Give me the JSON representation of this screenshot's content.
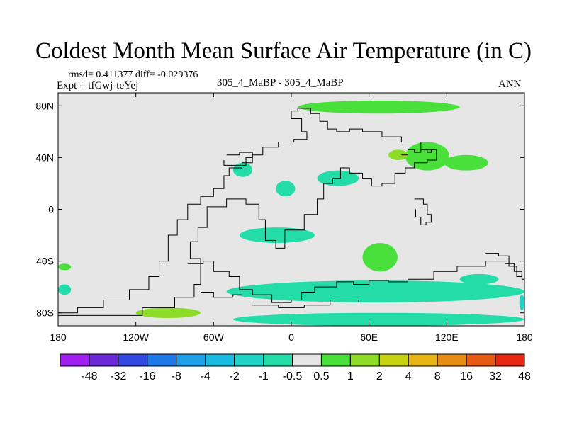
{
  "chart_data": {
    "type": "heatmap",
    "title": "Coldest Month Mean Surface Air Temperature (in C)",
    "stats_label": "rmsd= 0.411377  diff= -0.029376",
    "expt_label": "Expt = tfGwj-teYej",
    "center_label": "305_4_MaBP - 305_4_MaBP",
    "season_label": "ANN",
    "xlim": [
      -180,
      180
    ],
    "ylim": [
      -90,
      90
    ],
    "x_ticks": [
      {
        "value": -180,
        "label": "180"
      },
      {
        "value": -120,
        "label": "120W"
      },
      {
        "value": -60,
        "label": "60W"
      },
      {
        "value": 0,
        "label": "0"
      },
      {
        "value": 60,
        "label": "60E"
      },
      {
        "value": 120,
        "label": "120E"
      },
      {
        "value": 180,
        "label": "180"
      }
    ],
    "y_ticks": [
      {
        "value": 80,
        "label": "80N"
      },
      {
        "value": 40,
        "label": "40N"
      },
      {
        "value": 0,
        "label": "0"
      },
      {
        "value": -40,
        "label": "40S"
      },
      {
        "value": -80,
        "label": "80S"
      }
    ],
    "colorbar": {
      "levels": [
        "-48",
        "-32",
        "-16",
        "-8",
        "-4",
        "-2",
        "-1",
        "-0.5",
        "0.5",
        "1",
        "2",
        "4",
        "8",
        "16",
        "32",
        "48"
      ],
      "colors": [
        "#a020f0",
        "#6a28d8",
        "#3248e0",
        "#1e78e8",
        "#1ea0e8",
        "#19bce0",
        "#1ed2c8",
        "#24dca8",
        "#e6e6e6",
        "#4ae03c",
        "#8cdc28",
        "#c8d214",
        "#e6b414",
        "#e68c14",
        "#e65a14",
        "#e62814"
      ]
    },
    "background_color": "#e6e6e6",
    "anomaly_regions": [
      {
        "lon_range": [
          5,
          130
        ],
        "lat_range": [
          74,
          84
        ],
        "value": 0.7
      },
      {
        "lon_range": [
          88,
          122
        ],
        "lat_range": [
          30,
          52
        ],
        "value": 0.8
      },
      {
        "lon_range": [
          75,
          90
        ],
        "lat_range": [
          38,
          46
        ],
        "value": 1.3
      },
      {
        "lon_range": [
          118,
          152
        ],
        "lat_range": [
          30,
          42
        ],
        "value": 0.6
      },
      {
        "lon_range": [
          -45,
          -30
        ],
        "lat_range": [
          25,
          36
        ],
        "value": -0.7
      },
      {
        "lon_range": [
          -12,
          3
        ],
        "lat_range": [
          10,
          22
        ],
        "value": -0.7
      },
      {
        "lon_range": [
          20,
          52
        ],
        "lat_range": [
          18,
          30
        ],
        "value": -0.7
      },
      {
        "lon_range": [
          -40,
          18
        ],
        "lat_range": [
          -26,
          -14
        ],
        "value": -0.7
      },
      {
        "lon_range": [
          55,
          82
        ],
        "lat_range": [
          -48,
          -26
        ],
        "value": 0.7
      },
      {
        "lon_range": [
          -50,
          180
        ],
        "lat_range": [
          -72,
          -55
        ],
        "value": -0.7
      },
      {
        "lon_range": [
          -45,
          180
        ],
        "lat_range": [
          -90,
          -80
        ],
        "value": -0.8
      },
      {
        "lon_range": [
          -120,
          -70
        ],
        "lat_range": [
          -84,
          -76
        ],
        "value": 1.3
      },
      {
        "lon_range": [
          -180,
          -170
        ],
        "lat_range": [
          -47,
          -42
        ],
        "value": 0.7
      },
      {
        "lon_range": [
          -180,
          -170
        ],
        "lat_range": [
          -66,
          -58
        ],
        "value": -0.7
      },
      {
        "lon_range": [
          176,
          180
        ],
        "lat_range": [
          -78,
          -66
        ],
        "value": -2.0
      },
      {
        "lon_range": [
          130,
          160
        ],
        "lat_range": [
          -58,
          -50
        ],
        "value": -0.7
      }
    ],
    "coastlines": [
      [
        [
          -180,
          -82
        ],
        [
          -130,
          -82
        ],
        [
          -115,
          -76
        ],
        [
          -90,
          -68
        ],
        [
          -75,
          -58
        ],
        [
          -70,
          -38
        ],
        [
          -78,
          -25
        ],
        [
          -72,
          -14
        ],
        [
          -65,
          2
        ],
        [
          -50,
          8
        ],
        [
          -35,
          4
        ],
        [
          -25,
          -8
        ],
        [
          -20,
          -24
        ],
        [
          -12,
          -30
        ],
        [
          -5,
          -16
        ],
        [
          10,
          -4
        ],
        [
          20,
          8
        ],
        [
          25,
          20
        ],
        [
          32,
          24
        ],
        [
          38,
          32
        ],
        [
          45,
          28
        ],
        [
          55,
          24
        ],
        [
          62,
          18
        ],
        [
          70,
          20
        ],
        [
          80,
          28
        ],
        [
          88,
          32
        ],
        [
          95,
          36
        ],
        [
          105,
          38
        ],
        [
          112,
          46
        ],
        [
          100,
          52
        ],
        [
          85,
          56
        ],
        [
          70,
          60
        ],
        [
          55,
          62
        ],
        [
          45,
          60
        ],
        [
          35,
          62
        ],
        [
          28,
          68
        ],
        [
          22,
          74
        ],
        [
          15,
          78
        ],
        [
          5,
          76
        ],
        [
          0,
          70
        ],
        [
          8,
          60
        ],
        [
          12,
          54
        ],
        [
          2,
          52
        ],
        [
          -10,
          48
        ],
        [
          -22,
          42
        ],
        [
          -30,
          36
        ],
        [
          -38,
          32
        ],
        [
          -48,
          26
        ],
        [
          -52,
          16
        ],
        [
          -60,
          10
        ],
        [
          -70,
          4
        ],
        [
          -80,
          -8
        ],
        [
          -88,
          -20
        ],
        [
          -95,
          -40
        ],
        [
          -102,
          -52
        ],
        [
          -110,
          -62
        ],
        [
          -125,
          -70
        ],
        [
          -145,
          -76
        ],
        [
          -165,
          -80
        ],
        [
          -180,
          -80
        ]
      ],
      [
        [
          -80,
          -42
        ],
        [
          -68,
          -40
        ],
        [
          -60,
          -48
        ],
        [
          -48,
          -52
        ],
        [
          -40,
          -62
        ],
        [
          -30,
          -66
        ],
        [
          -15,
          -72
        ],
        [
          0,
          -70
        ],
        [
          8,
          -64
        ],
        [
          18,
          -60
        ],
        [
          35,
          -56
        ],
        [
          48,
          -58
        ],
        [
          60,
          -55
        ],
        [
          75,
          -56
        ],
        [
          90,
          -54
        ],
        [
          110,
          -48
        ],
        [
          128,
          -44
        ],
        [
          150,
          -40
        ],
        [
          165,
          -42
        ],
        [
          172,
          -48
        ],
        [
          178,
          -54
        ],
        [
          180,
          -62
        ]
      ],
      [
        [
          -30,
          -74
        ],
        [
          -10,
          -76
        ],
        [
          10,
          -74
        ],
        [
          30,
          -70
        ],
        [
          52,
          -72
        ]
      ],
      [
        [
          -70,
          -64
        ],
        [
          -60,
          -68
        ],
        [
          -45,
          -66
        ],
        [
          -38,
          -58
        ]
      ],
      [
        [
          95,
          8
        ],
        [
          102,
          4
        ],
        [
          105,
          -4
        ],
        [
          108,
          -10
        ],
        [
          104,
          -12
        ],
        [
          100,
          -6
        ],
        [
          96,
          0
        ]
      ],
      [
        [
          85,
          42
        ],
        [
          90,
          46
        ],
        [
          95,
          44
        ],
        [
          100,
          46
        ],
        [
          105,
          44
        ],
        [
          108,
          46
        ],
        [
          112,
          42
        ]
      ],
      [
        [
          -50,
          42
        ],
        [
          -40,
          44
        ],
        [
          -30,
          40
        ],
        [
          -35,
          34
        ],
        [
          -45,
          34
        ],
        [
          -52,
          38
        ]
      ],
      [
        [
          150,
          -34
        ],
        [
          160,
          -36
        ],
        [
          168,
          -44
        ],
        [
          174,
          -52
        ],
        [
          178,
          -50
        ]
      ]
    ]
  }
}
